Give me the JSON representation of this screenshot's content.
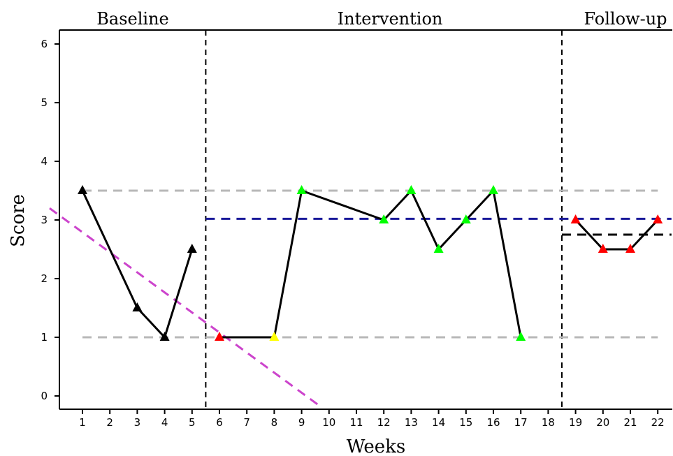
{
  "chart_data": {
    "type": "line",
    "xlabel": "Weeks",
    "ylabel": "Score",
    "ylim": [
      0,
      6
    ],
    "y_ticks": [
      "0",
      "1",
      "2",
      "3",
      "4",
      "5",
      "6"
    ],
    "x_categories": [
      "1",
      "2",
      "3",
      "4",
      "5",
      "6",
      "7",
      "8",
      "9",
      "10",
      "11",
      "12",
      "13",
      "14",
      "15",
      "16",
      "17",
      "18",
      "19",
      "20",
      "21",
      "22"
    ],
    "phases": [
      {
        "label": "Baseline",
        "weeks": [
          1,
          5
        ]
      },
      {
        "label": "Intervention",
        "weeks": [
          6,
          18
        ]
      },
      {
        "label": "Follow-up",
        "weeks": [
          19,
          22
        ]
      }
    ],
    "phase_boundaries": [
      5.5,
      18.5
    ],
    "series": [
      {
        "phase": "Baseline",
        "points": [
          {
            "week": 1,
            "score": 3.5,
            "color": "#000000"
          },
          {
            "week": 3,
            "score": 1.5,
            "color": "#000000"
          },
          {
            "week": 4,
            "score": 1.0,
            "color": "#000000"
          },
          {
            "week": 5,
            "score": 2.5,
            "color": "#000000"
          }
        ]
      },
      {
        "phase": "Intervention",
        "points": [
          {
            "week": 6,
            "score": 1.0,
            "color": "#ff0000"
          },
          {
            "week": 8,
            "score": 1.0,
            "color": "#ffff00"
          },
          {
            "week": 9,
            "score": 3.5,
            "color": "#00ff00"
          },
          {
            "week": 12,
            "score": 3.0,
            "color": "#00ff00"
          },
          {
            "week": 13,
            "score": 3.5,
            "color": "#00ff00"
          },
          {
            "week": 14,
            "score": 2.5,
            "color": "#00ff00"
          },
          {
            "week": 15,
            "score": 3.0,
            "color": "#00ff00"
          },
          {
            "week": 16,
            "score": 3.5,
            "color": "#00ff00"
          },
          {
            "week": 17,
            "score": 1.0,
            "color": "#00ff00"
          }
        ]
      },
      {
        "phase": "Follow-up",
        "points": [
          {
            "week": 19,
            "score": 3.0,
            "color": "#ff0000"
          },
          {
            "week": 20,
            "score": 2.5,
            "color": "#ff0000"
          },
          {
            "week": 21,
            "score": 2.5,
            "color": "#ff0000"
          },
          {
            "week": 22,
            "score": 3.0,
            "color": "#ff0000"
          }
        ]
      }
    ],
    "reference_lines": [
      {
        "kind": "horizontal",
        "y": 3.5,
        "x_from": 1,
        "x_to": 22,
        "color": "#b8b8b8"
      },
      {
        "kind": "horizontal",
        "y": 1.0,
        "x_from": 1,
        "x_to": 22,
        "color": "#b8b8b8"
      },
      {
        "kind": "horizontal",
        "y": 3.02,
        "x_from": 5.5,
        "x_to": 22.5,
        "color": "#1a1a9a"
      },
      {
        "kind": "horizontal",
        "y": 2.75,
        "x_from": 18.5,
        "x_to": 22.5,
        "color": "#000000"
      },
      {
        "kind": "trend",
        "from": [
          -0.2,
          3.2
        ],
        "to": [
          9.6,
          -0.15
        ],
        "color": "#cc44cc"
      }
    ]
  }
}
